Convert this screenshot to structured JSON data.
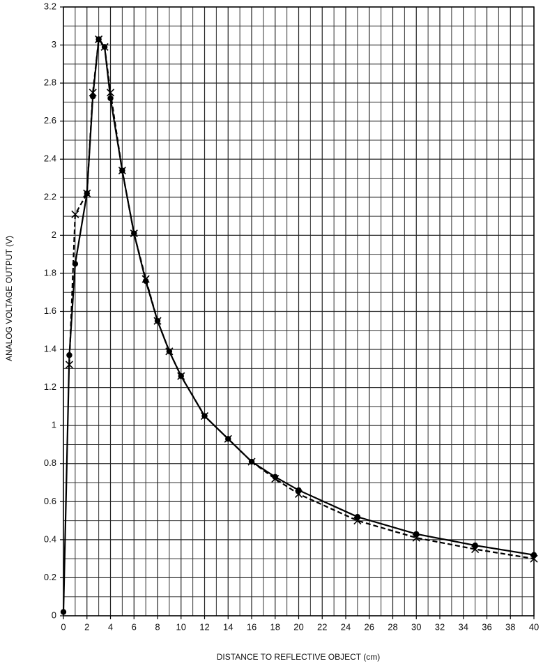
{
  "chart_data": {
    "type": "line",
    "xlabel": "DISTANCE TO REFLECTIVE OBJECT (cm)",
    "ylabel": "ANALOG VOLTAGE OUTPUT (V)",
    "xlim": [
      0,
      40
    ],
    "ylim": [
      0,
      3.2
    ],
    "xticks": [
      0,
      2,
      4,
      6,
      8,
      10,
      12,
      14,
      16,
      18,
      20,
      22,
      24,
      26,
      28,
      30,
      32,
      34,
      36,
      38,
      40
    ],
    "yticks": [
      0,
      0.2,
      0.4,
      0.6,
      0.8,
      1,
      1.2,
      1.4,
      1.6,
      1.8,
      2,
      2.2,
      2.4,
      2.6,
      2.8,
      3,
      3.2
    ],
    "x_minor_ticks": [
      1,
      3,
      5,
      7,
      9,
      11,
      13,
      15,
      17,
      19,
      21,
      23,
      25,
      27,
      29,
      31,
      33,
      35,
      37,
      39
    ],
    "y_minor_ticks": [
      0.1,
      0.3,
      0.5,
      0.7,
      0.9,
      1.1,
      1.3,
      1.5,
      1.7,
      1.9,
      2.1,
      2.3,
      2.5,
      2.7,
      2.9,
      3.1
    ],
    "grid": true,
    "series": [
      {
        "color": "#000000",
        "marker": "circle",
        "dash": false,
        "x": [
          0,
          0.5,
          1,
          2,
          2.5,
          3,
          3.5,
          4,
          5,
          6,
          7,
          8,
          9,
          10,
          12,
          14,
          16,
          18,
          20,
          25,
          30,
          35,
          40
        ],
        "values": [
          0.02,
          1.37,
          1.85,
          2.22,
          2.73,
          3.03,
          2.99,
          2.72,
          2.34,
          2.01,
          1.76,
          1.55,
          1.39,
          1.26,
          1.05,
          0.93,
          0.81,
          0.73,
          0.66,
          0.52,
          0.43,
          0.37,
          0.32
        ]
      },
      {
        "color": "#000000",
        "marker": "x",
        "dash": true,
        "x": [
          0.5,
          1,
          2,
          2.5,
          3,
          3.5,
          4,
          5,
          6,
          7,
          8,
          9,
          10,
          12,
          14,
          16,
          18,
          20,
          25,
          30,
          35,
          40
        ],
        "values": [
          1.32,
          2.11,
          2.22,
          2.75,
          3.03,
          2.99,
          2.75,
          2.34,
          2.01,
          1.77,
          1.55,
          1.39,
          1.26,
          1.05,
          0.93,
          0.81,
          0.72,
          0.64,
          0.5,
          0.41,
          0.35,
          0.3
        ]
      }
    ]
  }
}
